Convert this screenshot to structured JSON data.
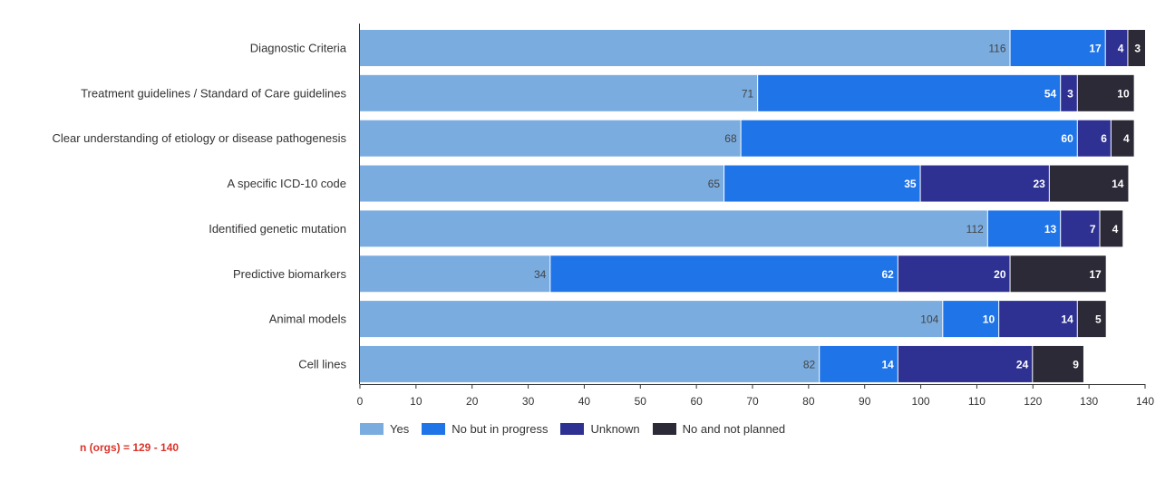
{
  "chart_data": {
    "type": "bar",
    "orientation": "horizontal",
    "stacked": true,
    "categories": [
      "Diagnostic Criteria",
      "Treatment guidelines / Standard of Care guidelines",
      "Clear understanding of etiology or disease pathogenesis",
      "A specific ICD-10 code",
      "Identified genetic mutation",
      "Predictive biomarkers",
      "Animal models",
      "Cell lines"
    ],
    "series": [
      {
        "name": "Yes",
        "color": "#7aacdf",
        "values": [
          116,
          71,
          68,
          65,
          112,
          34,
          104,
          82
        ]
      },
      {
        "name": "No but in progress",
        "color": "#1f74e8",
        "values": [
          17,
          54,
          60,
          35,
          13,
          62,
          10,
          14
        ]
      },
      {
        "name": "Unknown",
        "color": "#2e3192",
        "values": [
          4,
          3,
          6,
          23,
          7,
          20,
          14,
          24
        ]
      },
      {
        "name": "No and not planned",
        "color": "#2b2a36",
        "values": [
          3,
          10,
          4,
          14,
          4,
          17,
          5,
          9
        ]
      }
    ],
    "xlim": [
      0,
      140
    ],
    "xticks": [
      0,
      10,
      20,
      30,
      40,
      50,
      60,
      70,
      80,
      90,
      100,
      110,
      120,
      130,
      140
    ],
    "grid": false,
    "legend_position": "bottom-left",
    "note": "n (orgs) = 129 - 140"
  }
}
